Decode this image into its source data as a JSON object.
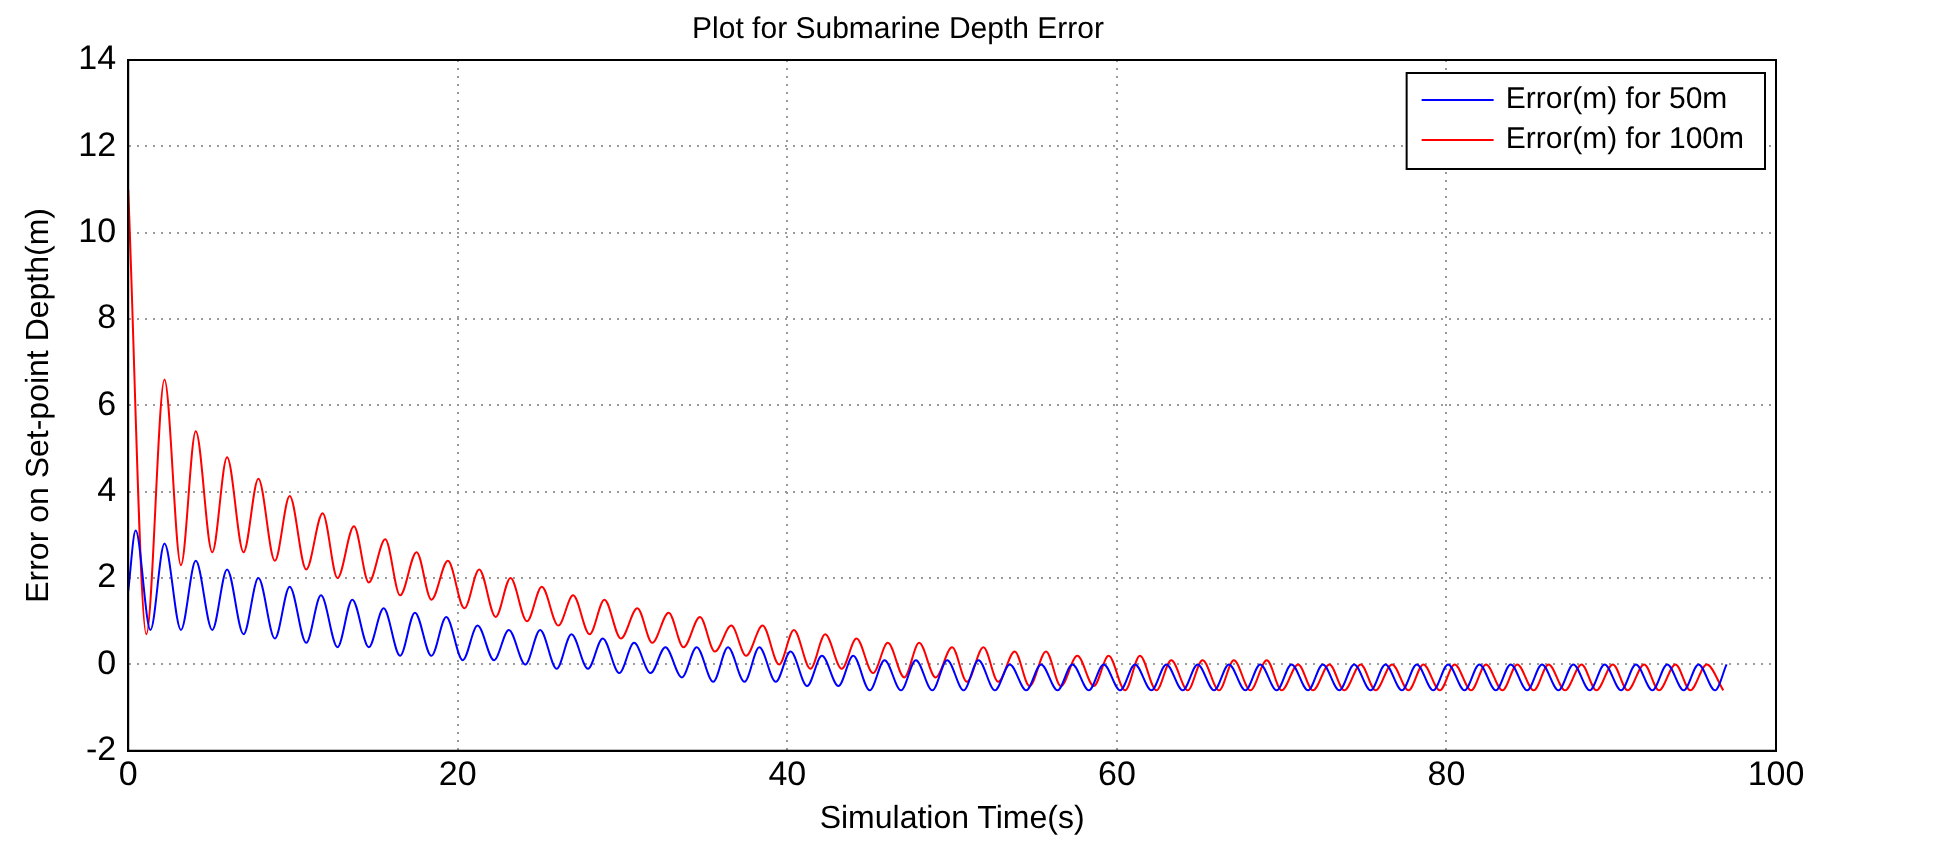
{
  "chart_data": {
    "type": "line",
    "title": "Plot for Submarine Depth Error",
    "xlabel": "Simulation Time(s)",
    "ylabel": "Error on Set-point Depth(m)",
    "xlim": [
      0,
      100
    ],
    "xticks": [
      0,
      20,
      40,
      60,
      80,
      100
    ],
    "ylim": [
      -2,
      14
    ],
    "yticks": [
      -2,
      0,
      2,
      4,
      6,
      8,
      10,
      12,
      14
    ],
    "grid": true,
    "legend": "top right",
    "marker": "none",
    "line_style": "solid",
    "series": [
      {
        "name": "Error(m) for 50m",
        "color": "#0000ff",
        "x": [
          0,
          0.45,
          1.35,
          2.2,
          3.2,
          4.1,
          5.1,
          6.0,
          7.0,
          7.9,
          8.9,
          9.8,
          10.8,
          11.7,
          12.7,
          13.6,
          14.6,
          15.5,
          16.5,
          17.4,
          18.4,
          19.3,
          20.3,
          21.2,
          22.2,
          23.1,
          24.1,
          25.0,
          26.0,
          26.9,
          27.9,
          28.8,
          29.8,
          30.7,
          31.7,
          32.6,
          33.6,
          34.5,
          35.5,
          36.4,
          37.4,
          38.3,
          39.3,
          40.2,
          41.2,
          42.1,
          43.1,
          44.0,
          45.0,
          45.9,
          46.9,
          47.8,
          48.8,
          49.7,
          50.7,
          51.6,
          52.6,
          53.5,
          54.5,
          55.4,
          56.4,
          57.3,
          58.3,
          59.2,
          60.2,
          61.1,
          62.1,
          63.0,
          64.0,
          64.9,
          65.9,
          66.8,
          67.8,
          68.7,
          69.7,
          70.6,
          71.6,
          72.5,
          73.5,
          74.4,
          75.4,
          76.3,
          77.3,
          78.2,
          79.2,
          80.1,
          81.1,
          82.0,
          83.0,
          83.9,
          84.9,
          85.8,
          86.8,
          87.7,
          88.7,
          89.6,
          90.6,
          91.5,
          92.5,
          93.4,
          94.4,
          95.3,
          96.3,
          97.0
        ],
        "values": [
          1.7,
          3.1,
          0.8,
          2.8,
          0.8,
          2.4,
          0.8,
          2.2,
          0.7,
          2.0,
          0.6,
          1.8,
          0.5,
          1.6,
          0.4,
          1.5,
          0.4,
          1.3,
          0.2,
          1.2,
          0.2,
          1.1,
          0.1,
          0.9,
          0.1,
          0.8,
          0.0,
          0.8,
          -0.1,
          0.7,
          -0.1,
          0.6,
          -0.2,
          0.5,
          -0.2,
          0.4,
          -0.3,
          0.4,
          -0.4,
          0.4,
          -0.4,
          0.4,
          -0.4,
          0.3,
          -0.5,
          0.2,
          -0.5,
          0.2,
          -0.6,
          0.1,
          -0.6,
          0.1,
          -0.6,
          0.1,
          -0.6,
          0.1,
          -0.6,
          0.0,
          -0.6,
          0.0,
          -0.6,
          0.0,
          -0.6,
          0.0,
          -0.6,
          0.0,
          -0.6,
          0.0,
          -0.6,
          0.0,
          -0.6,
          0.0,
          -0.6,
          0.0,
          -0.6,
          0.0,
          -0.6,
          0.0,
          -0.6,
          0.0,
          -0.6,
          0.0,
          -0.6,
          0.0,
          -0.6,
          0.0,
          -0.6,
          0.0,
          -0.6,
          0.0,
          -0.6,
          0.0,
          -0.6,
          0.0,
          -0.6,
          0.0,
          -0.6,
          0.0,
          -0.6,
          0.0,
          -0.6,
          0.0,
          -0.6,
          0.0
        ]
      },
      {
        "name": "Error(m) for 100m",
        "color": "#ff0000",
        "x": [
          0,
          1.1,
          2.2,
          3.2,
          4.1,
          5.1,
          6.0,
          7.0,
          7.9,
          8.9,
          9.8,
          10.8,
          11.8,
          12.7,
          13.7,
          14.6,
          15.6,
          16.5,
          17.5,
          18.4,
          19.4,
          20.4,
          21.3,
          22.3,
          23.2,
          24.2,
          25.1,
          26.1,
          27.0,
          28.0,
          28.9,
          29.9,
          30.9,
          31.8,
          32.8,
          33.7,
          34.7,
          35.6,
          36.6,
          37.5,
          38.5,
          39.5,
          40.4,
          41.4,
          42.3,
          43.3,
          44.2,
          45.2,
          46.1,
          47.1,
          48.0,
          49.0,
          50.0,
          50.9,
          51.9,
          52.8,
          53.8,
          54.7,
          55.7,
          56.6,
          57.6,
          58.6,
          59.5,
          60.5,
          61.4,
          62.4,
          63.3,
          64.3,
          65.2,
          66.2,
          67.1,
          68.1,
          69.1,
          70.0,
          71.0,
          71.9,
          72.9,
          73.8,
          74.8,
          75.7,
          76.7,
          77.7,
          78.6,
          79.6,
          80.5,
          81.5,
          82.4,
          83.4,
          84.3,
          85.3,
          86.2,
          87.2,
          88.2,
          89.1,
          90.1,
          91.0,
          92.0,
          92.9,
          93.9,
          94.8,
          95.8,
          96.8
        ],
        "values": [
          11.0,
          0.7,
          6.6,
          2.3,
          5.4,
          2.6,
          4.8,
          2.6,
          4.3,
          2.4,
          3.9,
          2.2,
          3.5,
          2.0,
          3.2,
          1.9,
          2.9,
          1.6,
          2.6,
          1.5,
          2.4,
          1.3,
          2.2,
          1.1,
          2.0,
          1.0,
          1.8,
          0.9,
          1.6,
          0.7,
          1.5,
          0.6,
          1.3,
          0.5,
          1.2,
          0.4,
          1.1,
          0.3,
          0.9,
          0.2,
          0.9,
          0.0,
          0.8,
          -0.1,
          0.7,
          -0.1,
          0.6,
          -0.2,
          0.5,
          -0.3,
          0.5,
          -0.3,
          0.4,
          -0.4,
          0.4,
          -0.4,
          0.3,
          -0.5,
          0.3,
          -0.5,
          0.2,
          -0.5,
          0.2,
          -0.6,
          0.2,
          -0.6,
          0.1,
          -0.6,
          0.1,
          -0.6,
          0.1,
          -0.6,
          0.1,
          -0.6,
          0.0,
          -0.6,
          0.0,
          -0.6,
          0.0,
          -0.6,
          0.0,
          -0.6,
          0.0,
          -0.6,
          0.0,
          -0.6,
          0.0,
          -0.6,
          0.0,
          -0.6,
          0.0,
          -0.6,
          0.0,
          -0.6,
          0.0,
          -0.6,
          0.0,
          -0.6,
          0.0,
          -0.6,
          0.0,
          -0.6
        ]
      }
    ]
  }
}
